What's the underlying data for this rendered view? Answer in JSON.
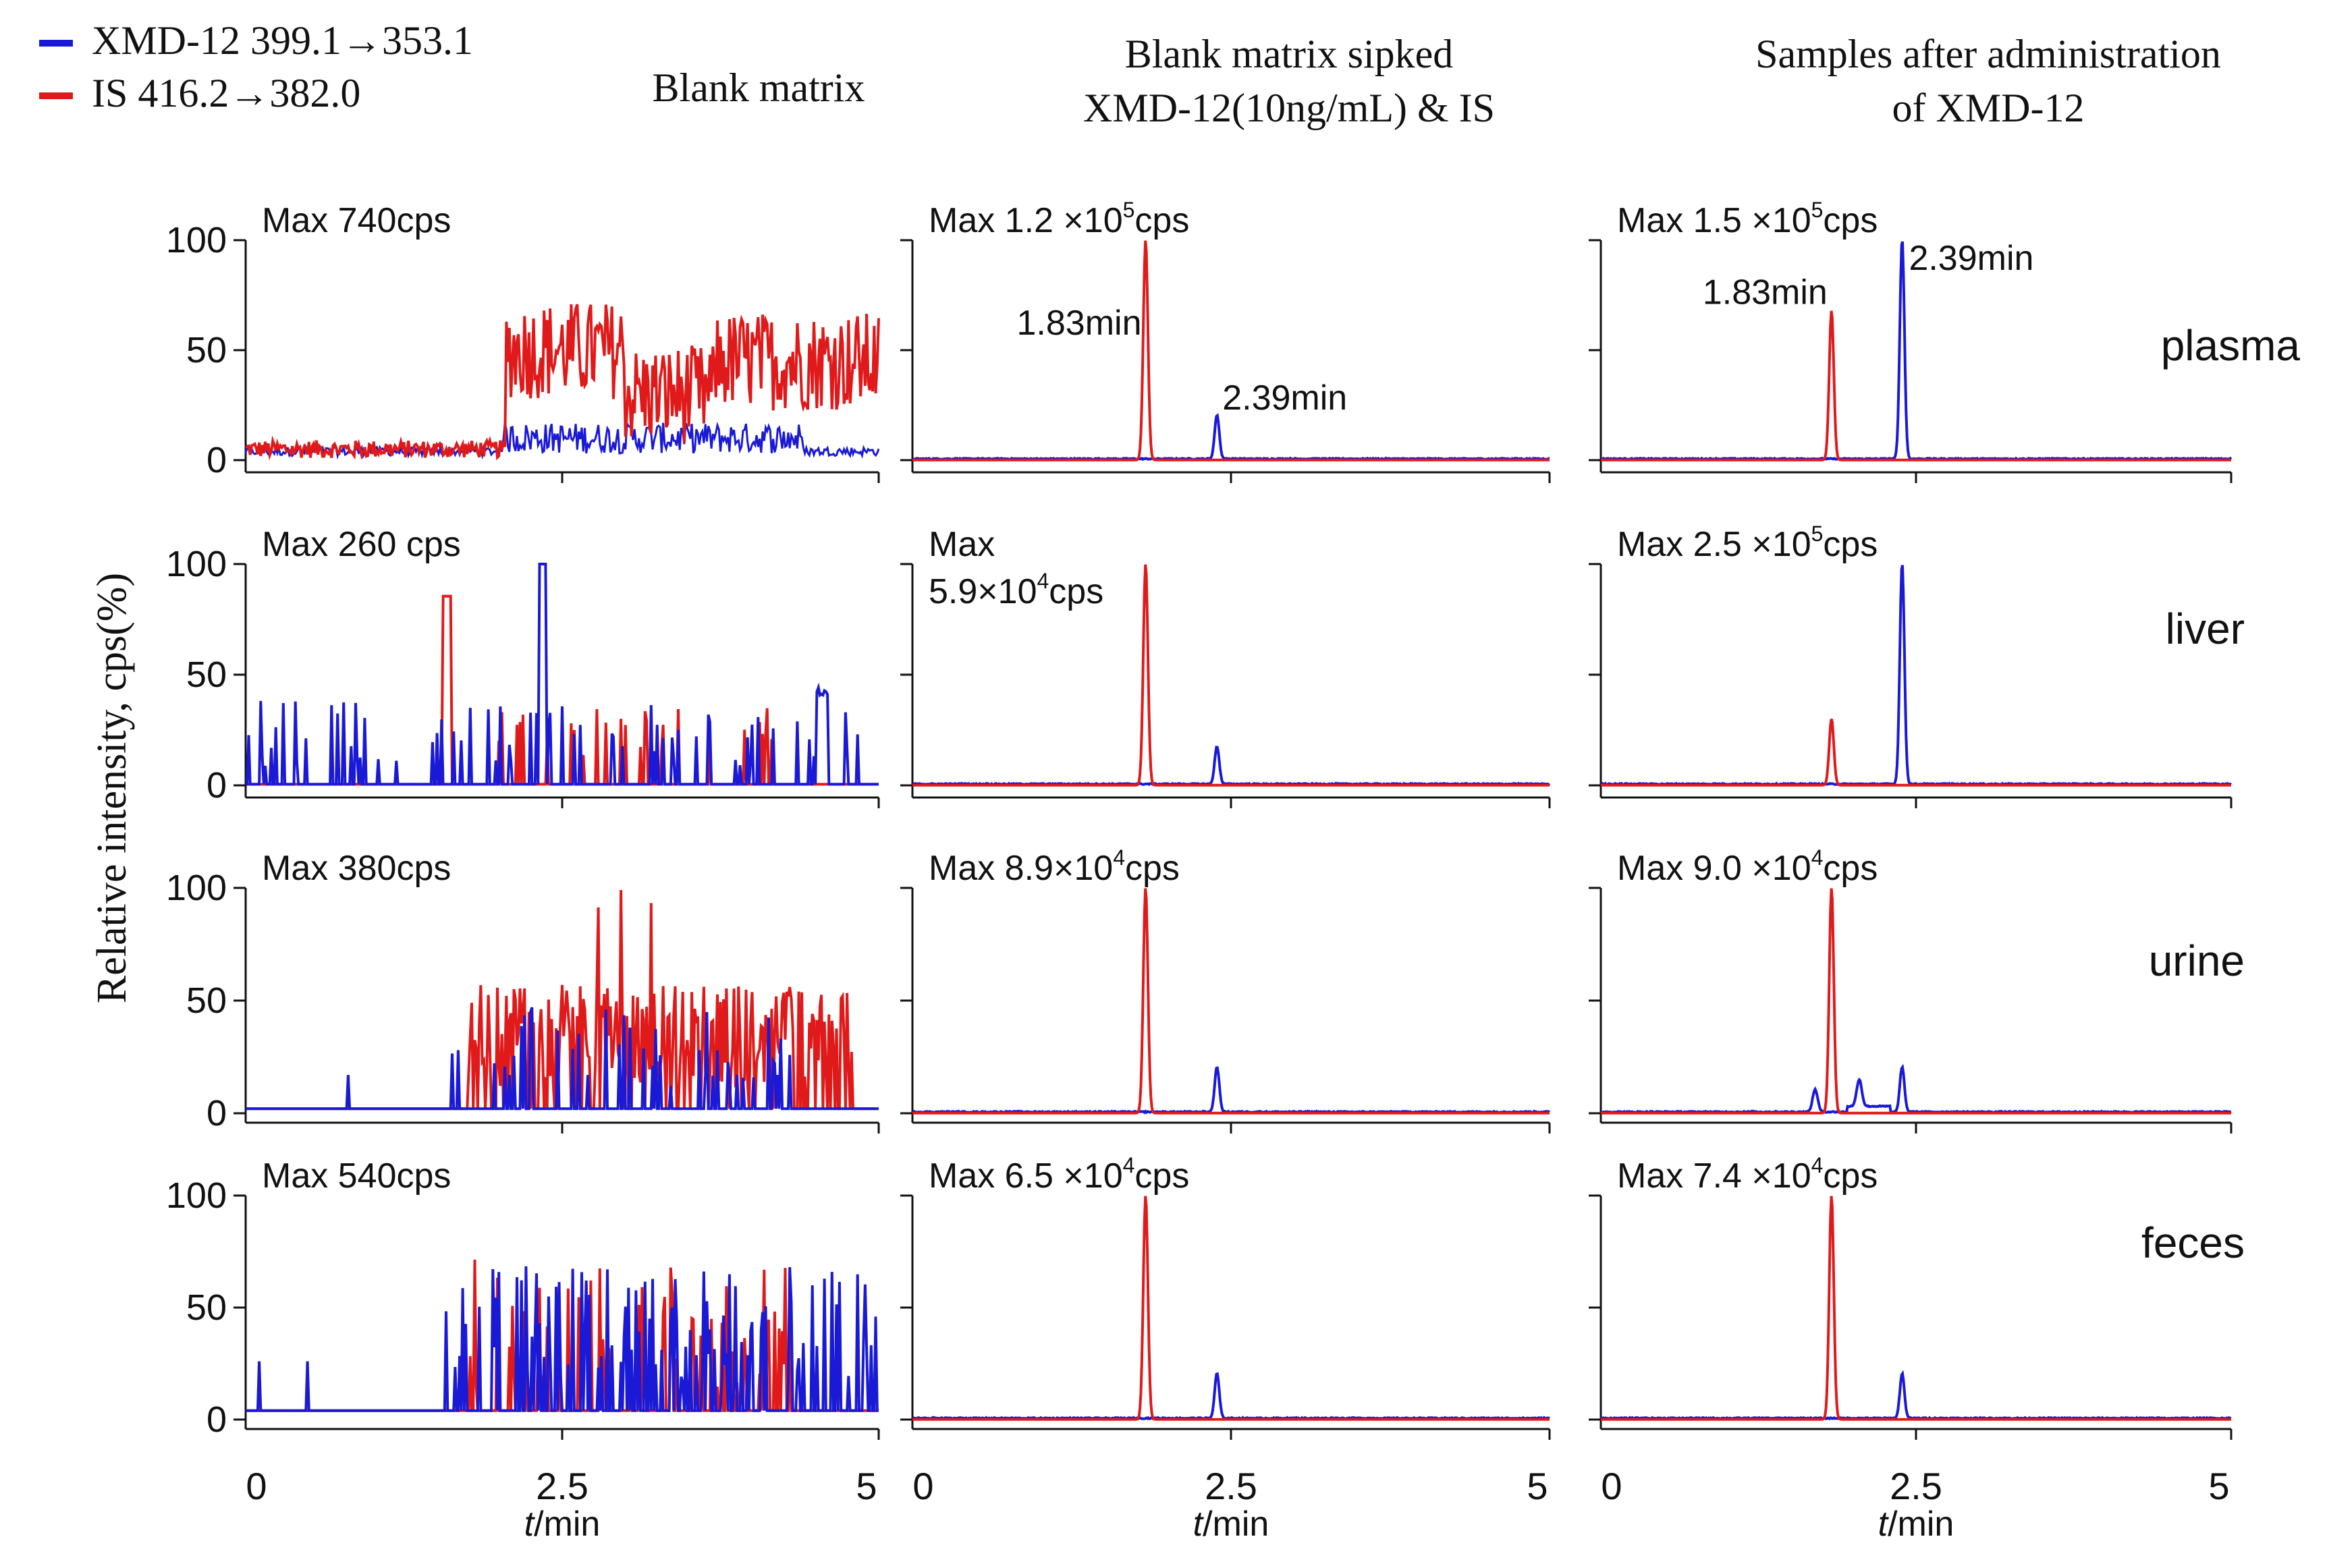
{
  "legend": [
    {
      "label": "XMD-12   399.1→353.1",
      "color": "#1a1ad6"
    },
    {
      "label": "IS    416.2→382.0",
      "color": "#e01a1a"
    }
  ],
  "column_titles": [
    [
      "Blank matrix"
    ],
    [
      "Blank matrix sipked",
      " XMD-12(10ng/mL) & IS"
    ],
    [
      "Samples after administration",
      "of XMD-12"
    ]
  ],
  "row_labels": [
    "plasma",
    "liver",
    "urine",
    "feces"
  ],
  "y_axis_label": "Relative intensity, cps(%)",
  "x_axis_label": {
    "italic": "t",
    "rest": "/min"
  },
  "colors": {
    "xmd12": "#1a1ad6",
    "is": "#e01a1a"
  },
  "chart_data": {
    "type": "line",
    "xlim": [
      0,
      5
    ],
    "ylim": [
      0,
      100
    ],
    "x_ticks": [
      "0",
      "2.5",
      "5"
    ],
    "y_ticks": [
      "0",
      "50",
      "100"
    ],
    "series_names": [
      "XMD-12   399.1→353.1",
      "IS    416.2→382.0"
    ],
    "panels": [
      {
        "row": "plasma",
        "column": "Blank matrix",
        "max": {
          "pre": "Max 740cps"
        },
        "kind": "noise",
        "noise": "plasma"
      },
      {
        "row": "plasma",
        "column": "Blank matrix sipked XMD-12(10ng/mL) & IS",
        "max": {
          "pre": "Max 1.2 ×10",
          "sup": "5",
          "post": "cps"
        },
        "kind": "peaks",
        "is_peak": {
          "x": 1.83,
          "y": 100
        },
        "xmd_peak": {
          "x": 2.39,
          "y": 20
        },
        "annotations": [
          "1.83min",
          "2.39min"
        ]
      },
      {
        "row": "plasma",
        "column": "Samples after administration of XMD-12",
        "max": {
          "pre": "Max 1.5 ×10",
          "sup": "5",
          "post": "cps"
        },
        "kind": "peaks",
        "is_peak": {
          "x": 1.83,
          "y": 68
        },
        "xmd_peak": {
          "x": 2.39,
          "y": 100
        },
        "annotations": [
          "1.83min",
          "2.39min"
        ]
      },
      {
        "row": "liver",
        "column": "Blank matrix",
        "max": {
          "pre": "Max 260 cps"
        },
        "kind": "noise",
        "noise": "spiky",
        "blue_big": {
          "x": 2.35,
          "y": 100
        },
        "red_big": {
          "x": 1.6,
          "y": 85
        }
      },
      {
        "row": "liver",
        "column": "Blank matrix sipked XMD-12(10ng/mL) & IS",
        "max": {
          "pre": "Max",
          "line2pre": "5.9×10",
          "sup": "4",
          "post": "cps"
        },
        "kind": "peaks",
        "is_peak": {
          "x": 1.83,
          "y": 100
        },
        "xmd_peak": {
          "x": 2.39,
          "y": 17
        }
      },
      {
        "row": "liver",
        "column": "Samples after administration of XMD-12",
        "max": {
          "pre": "Max 2.5 ×10",
          "sup": "5",
          "post": "cps"
        },
        "kind": "peaks",
        "is_peak": {
          "x": 1.83,
          "y": 30
        },
        "xmd_peak": {
          "x": 2.39,
          "y": 100
        }
      },
      {
        "row": "urine",
        "column": "Blank matrix",
        "max": {
          "pre": "Max 380cps"
        },
        "kind": "noise",
        "noise": "urine"
      },
      {
        "row": "urine",
        "column": "Blank matrix sipked XMD-12(10ng/mL) & IS",
        "max": {
          "pre": "Max 8.9×10",
          "sup": "4",
          "post": "cps"
        },
        "kind": "peaks",
        "is_peak": {
          "x": 1.83,
          "y": 100
        },
        "xmd_peak": {
          "x": 2.39,
          "y": 20
        }
      },
      {
        "row": "urine",
        "column": "Samples after administration of XMD-12",
        "max": {
          "pre": "Max 9.0 ×10",
          "sup": "4",
          "post": "cps"
        },
        "kind": "peaks",
        "is_peak": {
          "x": 1.83,
          "y": 100
        },
        "xmd_peak": {
          "x": 2.39,
          "y": 20
        },
        "extra_peaks": [
          {
            "x": 1.7,
            "y": 10
          },
          {
            "x": 2.05,
            "y": 12
          }
        ]
      },
      {
        "row": "feces",
        "column": "Blank matrix",
        "max": {
          "pre": "Max 540cps"
        },
        "kind": "noise",
        "noise": "feces"
      },
      {
        "row": "feces",
        "column": "Blank matrix sipked XMD-12(10ng/mL) & IS",
        "max": {
          "pre": "Max 6.5 ×10",
          "sup": "4",
          "post": "cps"
        },
        "kind": "peaks",
        "is_peak": {
          "x": 1.83,
          "y": 100
        },
        "xmd_peak": {
          "x": 2.39,
          "y": 20
        }
      },
      {
        "row": "feces",
        "column": "Samples after administration of XMD-12",
        "max": {
          "pre": "Max 7.4 ×10",
          "sup": "4",
          "post": "cps"
        },
        "kind": "peaks",
        "is_peak": {
          "x": 1.83,
          "y": 100
        },
        "xmd_peak": {
          "x": 2.39,
          "y": 20
        }
      }
    ]
  }
}
